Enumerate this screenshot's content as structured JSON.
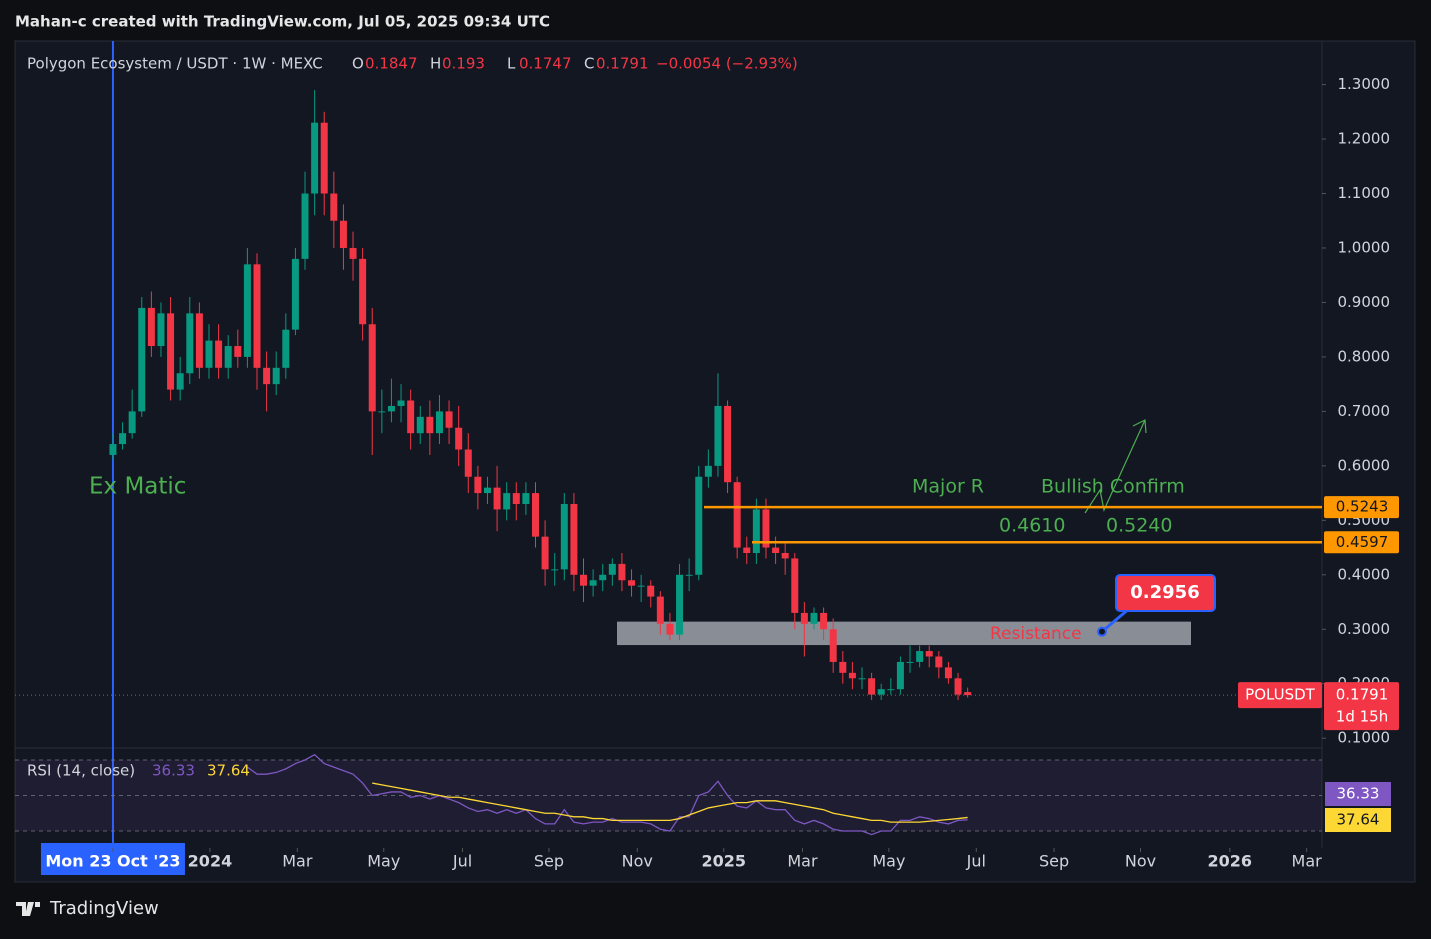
{
  "header": {
    "credit": "Mahan-c created with TradingView.com, Jul 05, 2025 09:34 UTC",
    "brand": "TradingView"
  },
  "chart_data": {
    "type": "candlestick",
    "title": "Polygon Ecosystem / USDT · 1W · MEXC",
    "ohlc_labels": [
      "O",
      "H",
      "L",
      "C"
    ],
    "change": "−0.0054 (−2.93%)",
    "up_color": "#089981",
    "down_color": "#f23645",
    "open": [
      0.62,
      0.64,
      0.66,
      0.7,
      0.89,
      0.82,
      0.88,
      0.74,
      0.77,
      0.88,
      0.78,
      0.83,
      0.78,
      0.82,
      0.8,
      0.97,
      0.78,
      0.75,
      0.78,
      0.85,
      0.98,
      1.1,
      1.23,
      1.1,
      1.05,
      1.0,
      0.98,
      0.86,
      0.7,
      0.7,
      0.71,
      0.72,
      0.66,
      0.69,
      0.66,
      0.7,
      0.67,
      0.63,
      0.58,
      0.55,
      0.56,
      0.52,
      0.55,
      0.53,
      0.55,
      0.47,
      0.41,
      0.41,
      0.53,
      0.4,
      0.38,
      0.39,
      0.4,
      0.42,
      0.39,
      0.38,
      0.38,
      0.36,
      0.31,
      0.29,
      0.4,
      0.4,
      0.58,
      0.6,
      0.71,
      0.57,
      0.45,
      0.44,
      0.52,
      0.45,
      0.44,
      0.43,
      0.33,
      0.31,
      0.33,
      0.3,
      0.24,
      0.22,
      0.21,
      0.21,
      0.18,
      0.19,
      0.19,
      0.24,
      0.24,
      0.26,
      0.25,
      0.23,
      0.21,
      0.1847
    ],
    "high": [
      0.66,
      0.68,
      0.74,
      0.91,
      0.92,
      0.9,
      0.91,
      0.8,
      0.91,
      0.9,
      0.86,
      0.86,
      0.84,
      0.85,
      1.0,
      0.99,
      0.81,
      0.81,
      0.88,
      1.0,
      1.14,
      1.29,
      1.25,
      1.14,
      1.08,
      1.03,
      1.0,
      0.89,
      0.74,
      0.76,
      0.75,
      0.74,
      0.71,
      0.72,
      0.73,
      0.72,
      0.71,
      0.66,
      0.6,
      0.58,
      0.6,
      0.57,
      0.57,
      0.57,
      0.57,
      0.5,
      0.44,
      0.55,
      0.55,
      0.43,
      0.41,
      0.42,
      0.43,
      0.44,
      0.41,
      0.4,
      0.39,
      0.37,
      0.33,
      0.42,
      0.43,
      0.6,
      0.63,
      0.77,
      0.72,
      0.58,
      0.47,
      0.54,
      0.54,
      0.47,
      0.46,
      0.44,
      0.35,
      0.34,
      0.34,
      0.32,
      0.26,
      0.24,
      0.23,
      0.22,
      0.2,
      0.21,
      0.25,
      0.27,
      0.27,
      0.27,
      0.26,
      0.24,
      0.22,
      0.193
    ],
    "low": [
      0.61,
      0.63,
      0.65,
      0.69,
      0.8,
      0.8,
      0.72,
      0.72,
      0.75,
      0.76,
      0.76,
      0.76,
      0.76,
      0.78,
      0.78,
      0.74,
      0.7,
      0.73,
      0.76,
      0.84,
      0.96,
      1.06,
      1.06,
      1.0,
      0.96,
      0.94,
      0.83,
      0.62,
      0.66,
      0.68,
      0.68,
      0.63,
      0.64,
      0.62,
      0.64,
      0.64,
      0.6,
      0.55,
      0.52,
      0.53,
      0.48,
      0.5,
      0.5,
      0.51,
      0.45,
      0.38,
      0.38,
      0.39,
      0.37,
      0.35,
      0.36,
      0.37,
      0.38,
      0.37,
      0.36,
      0.35,
      0.34,
      0.29,
      0.28,
      0.28,
      0.37,
      0.39,
      0.56,
      0.58,
      0.55,
      0.43,
      0.42,
      0.42,
      0.43,
      0.42,
      0.4,
      0.3,
      0.25,
      0.3,
      0.28,
      0.22,
      0.2,
      0.19,
      0.19,
      0.17,
      0.17,
      0.18,
      0.18,
      0.22,
      0.23,
      0.23,
      0.21,
      0.2,
      0.17,
      0.1747
    ],
    "close": [
      0.64,
      0.66,
      0.7,
      0.89,
      0.82,
      0.88,
      0.74,
      0.77,
      0.88,
      0.78,
      0.83,
      0.78,
      0.82,
      0.8,
      0.97,
      0.78,
      0.75,
      0.78,
      0.85,
      0.98,
      1.1,
      1.23,
      1.1,
      1.05,
      1.0,
      0.98,
      0.86,
      0.7,
      0.7,
      0.71,
      0.72,
      0.66,
      0.69,
      0.66,
      0.7,
      0.67,
      0.63,
      0.58,
      0.55,
      0.56,
      0.52,
      0.55,
      0.53,
      0.55,
      0.47,
      0.41,
      0.41,
      0.53,
      0.4,
      0.38,
      0.39,
      0.4,
      0.42,
      0.39,
      0.38,
      0.38,
      0.36,
      0.31,
      0.29,
      0.4,
      0.4,
      0.58,
      0.6,
      0.71,
      0.57,
      0.45,
      0.44,
      0.52,
      0.45,
      0.44,
      0.43,
      0.33,
      0.31,
      0.33,
      0.3,
      0.24,
      0.22,
      0.21,
      0.21,
      0.18,
      0.19,
      0.19,
      0.24,
      0.24,
      0.26,
      0.25,
      0.23,
      0.21,
      0.18,
      0.1791
    ],
    "xlim": [
      -10.2,
      125.9
    ],
    "xticks": [
      {
        "value": 0,
        "label": "Mon 23 Oct '23"
      },
      {
        "value": 10.1,
        "label": "2024"
      },
      {
        "value": 19.2,
        "label": "Mar"
      },
      {
        "value": 28.2,
        "label": "May"
      },
      {
        "value": 36.4,
        "label": "Jul"
      },
      {
        "value": 45.4,
        "label": "Sep"
      },
      {
        "value": 54.6,
        "label": "Nov"
      },
      {
        "value": 63.6,
        "label": "2025"
      },
      {
        "value": 71.8,
        "label": "Mar"
      },
      {
        "value": 80.8,
        "label": "May"
      },
      {
        "value": 89.9,
        "label": "Jul"
      },
      {
        "value": 98,
        "label": "Sep"
      },
      {
        "value": 107,
        "label": "Nov"
      },
      {
        "value": 116.3,
        "label": "2026"
      },
      {
        "value": 124.3,
        "label": "Mar"
      }
    ],
    "ylim": [
      0.082,
      1.38
    ],
    "yticks": [
      {
        "value": 0.1,
        "label": "0.1000"
      },
      {
        "value": 0.2,
        "label": "0.2000"
      },
      {
        "value": 0.3,
        "label": "0.3000"
      },
      {
        "value": 0.4,
        "label": "0.4000"
      },
      {
        "value": 0.5,
        "label": "0.5000"
      },
      {
        "value": 0.6,
        "label": "0.6000"
      },
      {
        "value": 0.7,
        "label": "0.7000"
      },
      {
        "value": 0.8,
        "label": "0.8000"
      },
      {
        "value": 0.9,
        "label": "0.9000"
      },
      {
        "value": 1.0,
        "label": "1.0000"
      },
      {
        "value": 1.1,
        "label": "1.1000"
      },
      {
        "value": 1.2,
        "label": "1.2000"
      },
      {
        "value": 1.3,
        "label": "1.3000"
      }
    ],
    "price_lines": [
      {
        "value": 0.5243,
        "color": "#ff9800"
      },
      {
        "value": 0.4597,
        "color": "#ff9800"
      }
    ],
    "resistance_zone": [
      0.271,
      0.314
    ],
    "callout": {
      "value": 0.2956,
      "label": "0.2956"
    },
    "annotations": [
      "Ex Matic",
      "Major R",
      "Bullish Confirm",
      "0.4610",
      "0.5240",
      "Resistance"
    ],
    "symbol": "POLUSDT",
    "countdown": "1d 15h",
    "rsi": {
      "title": "RSI (14, close)",
      "ylim": [
        30,
        70
      ],
      "levels": [
        70,
        50,
        30
      ],
      "series": [
        {
          "name": "RSI",
          "color": "#7e57c2",
          "values": [
            null,
            null,
            null,
            null,
            null,
            null,
            null,
            null,
            null,
            null,
            null,
            null,
            null,
            null,
            66,
            62,
            62,
            63,
            65,
            68,
            70,
            73,
            68,
            66,
            64,
            62,
            57,
            50,
            51,
            52,
            52,
            49,
            50,
            48,
            50,
            48,
            46,
            43,
            41,
            42,
            40,
            42,
            40,
            42,
            37,
            34,
            34,
            42,
            35,
            34,
            35,
            35,
            37,
            35,
            35,
            35,
            34,
            31,
            30,
            38,
            38,
            50,
            52,
            58,
            50,
            44,
            43,
            47,
            43,
            42,
            42,
            36,
            34,
            36,
            34,
            31,
            30,
            30,
            30,
            28,
            30,
            30,
            36,
            36,
            38,
            37,
            35,
            34,
            36,
            36.33
          ]
        },
        {
          "name": "RSI MA",
          "color": "#fdd835",
          "values": [
            null,
            null,
            null,
            null,
            null,
            null,
            null,
            null,
            null,
            null,
            null,
            null,
            null,
            null,
            null,
            null,
            null,
            null,
            null,
            null,
            null,
            null,
            null,
            null,
            null,
            null,
            null,
            57,
            56,
            55,
            54,
            53,
            52,
            51,
            50,
            49,
            49,
            48,
            47,
            46,
            45,
            44,
            43,
            42,
            41,
            40,
            40,
            39,
            38,
            38,
            37,
            37,
            36,
            36,
            36,
            36,
            36,
            36,
            36,
            37,
            39,
            41,
            43,
            44,
            45,
            46,
            46,
            47,
            47,
            47,
            46,
            45,
            44,
            43,
            42,
            40,
            39,
            38,
            37,
            36,
            36,
            35,
            35,
            35,
            35,
            35.5,
            36,
            36.5,
            37,
            37.64
          ]
        }
      ]
    }
  }
}
